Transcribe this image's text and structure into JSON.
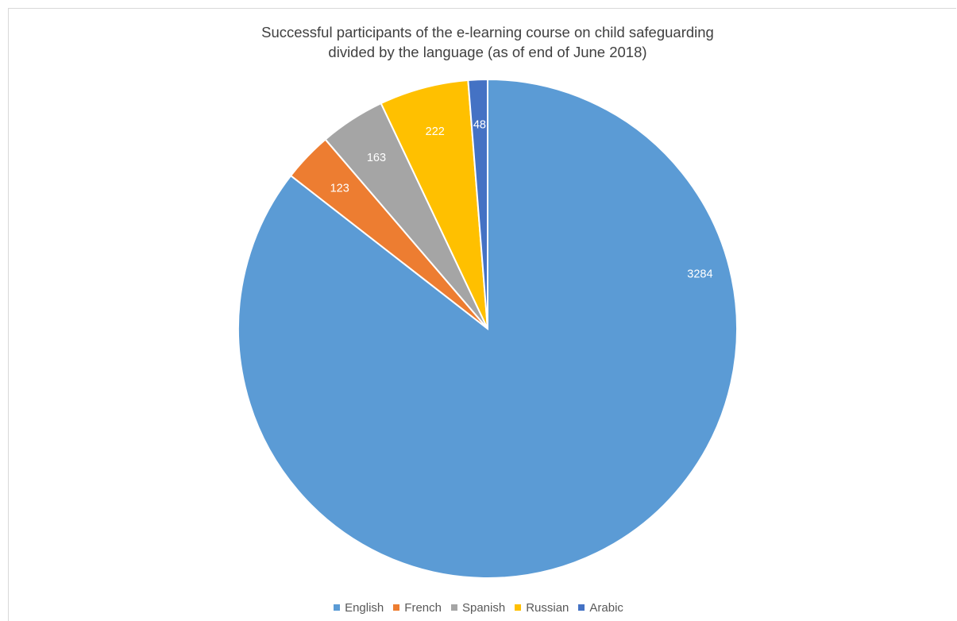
{
  "chart_data": {
    "type": "pie",
    "title": "Successful participants of the e-learning course on child safeguarding divided by the language (as of end of June 2018)",
    "title_lines": [
      "Successful participants of the e-learning course on child safeguarding",
      "divided by the language (as of end of June 2018)"
    ],
    "categories": [
      "English",
      "French",
      "Spanish",
      "Russian",
      "Arabic"
    ],
    "values": [
      3284,
      123,
      163,
      222,
      48
    ],
    "colors": [
      "#5b9bd5",
      "#ed7d31",
      "#a5a5a5",
      "#ffc000",
      "#4472c4"
    ],
    "data_labels": [
      "3284",
      "123",
      "163",
      "222",
      "48"
    ],
    "start_angle_deg": 0,
    "direction": "clockwise",
    "legend_position": "bottom",
    "data_labels_shown": true
  }
}
